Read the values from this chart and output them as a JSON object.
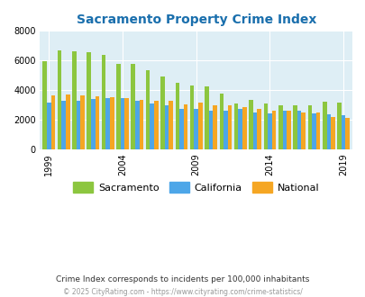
{
  "title": "Sacramento Property Crime Index",
  "years": [
    1999,
    2000,
    2001,
    2002,
    2003,
    2004,
    2005,
    2006,
    2007,
    2008,
    2009,
    2010,
    2011,
    2012,
    2013,
    2014,
    2015,
    2016,
    2017,
    2018,
    2019
  ],
  "sacramento": [
    5950,
    6700,
    6600,
    6580,
    6350,
    5800,
    5750,
    5350,
    4900,
    4480,
    4300,
    4250,
    3780,
    3100,
    3350,
    3080,
    2980,
    2950,
    3000,
    3200,
    3150
  ],
  "california": [
    3150,
    3300,
    3300,
    3400,
    3450,
    3450,
    3250,
    3100,
    3000,
    2750,
    2700,
    2600,
    2600,
    2700,
    2500,
    2450,
    2600,
    2600,
    2400,
    2350,
    2300
  ],
  "national": [
    3650,
    3700,
    3650,
    3600,
    3500,
    3480,
    3350,
    3300,
    3250,
    3050,
    3150,
    2950,
    2950,
    2870,
    2700,
    2600,
    2600,
    2500,
    2500,
    2200,
    2100
  ],
  "color_sacramento": "#8cc63f",
  "color_california": "#4da6e8",
  "color_national": "#f5a623",
  "bg_color": "#deeef5",
  "ylim": [
    0,
    8000
  ],
  "yticks": [
    0,
    2000,
    4000,
    6000,
    8000
  ],
  "xtick_years": [
    1999,
    2004,
    2009,
    2014,
    2019
  ],
  "subtitle": "Crime Index corresponds to incidents per 100,000 inhabitants",
  "footer": "© 2025 CityRating.com - https://www.cityrating.com/crime-statistics/",
  "title_color": "#1a6fad",
  "subtitle_color": "#333333",
  "footer_color": "#999999",
  "legend_labels": [
    "Sacramento",
    "California",
    "National"
  ]
}
